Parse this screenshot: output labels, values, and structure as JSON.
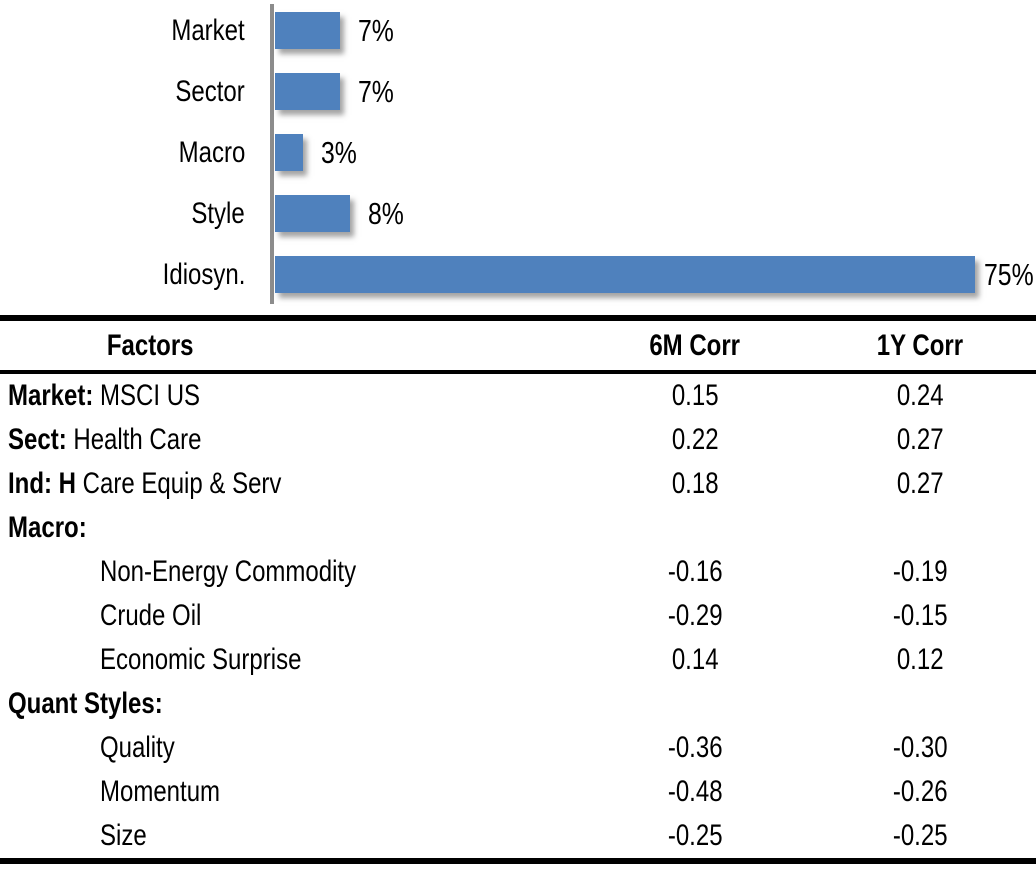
{
  "chart_data": {
    "type": "bar",
    "orientation": "horizontal",
    "title": "",
    "xlabel": "",
    "ylabel": "",
    "categories": [
      "Market",
      "Sector",
      "Macro",
      "Style",
      "Idiosyn."
    ],
    "values": [
      7,
      7,
      3,
      8,
      75
    ],
    "labels": [
      "7%",
      "7%",
      "3%",
      "8%",
      "75%"
    ],
    "xlim": [
      0,
      81.5
    ],
    "grid": false,
    "legend": false,
    "bar_color": "#4F81BD",
    "axis_color": "#8C8C8C",
    "label_color": "#000000"
  },
  "table": {
    "header": {
      "factors": "Factors",
      "corr6m": "6M Corr",
      "corr1y": "1Y Corr"
    },
    "rows": [
      {
        "prefix": "Market:",
        "name": " MSCI US",
        "indent": false,
        "corr6m": "0.15",
        "corr1y": "0.24"
      },
      {
        "prefix": "Sect:",
        "name": " Health Care",
        "indent": false,
        "corr6m": "0.22",
        "corr1y": "0.27"
      },
      {
        "prefix": "Ind: H",
        "name": " Care Equip & Serv",
        "indent": false,
        "corr6m": "0.18",
        "corr1y": "0.27"
      },
      {
        "prefix": "Macro:",
        "name": "",
        "indent": false,
        "corr6m": "",
        "corr1y": ""
      },
      {
        "prefix": "",
        "name": "Non-Energy Commodity",
        "indent": true,
        "corr6m": "-0.16",
        "corr1y": "-0.19"
      },
      {
        "prefix": "",
        "name": "Crude Oil",
        "indent": true,
        "corr6m": "-0.29",
        "corr1y": "-0.15"
      },
      {
        "prefix": "",
        "name": "Economic Surprise",
        "indent": true,
        "corr6m": "0.14",
        "corr1y": "0.12"
      },
      {
        "prefix": "Quant Styles:",
        "name": "",
        "indent": false,
        "corr6m": "",
        "corr1y": ""
      },
      {
        "prefix": "",
        "name": "Quality",
        "indent": true,
        "corr6m": "-0.36",
        "corr1y": "-0.30"
      },
      {
        "prefix": "",
        "name": "Momentum",
        "indent": true,
        "corr6m": "-0.48",
        "corr1y": "-0.26"
      },
      {
        "prefix": "",
        "name": "Size",
        "indent": true,
        "corr6m": "-0.25",
        "corr1y": "-0.25"
      }
    ]
  }
}
